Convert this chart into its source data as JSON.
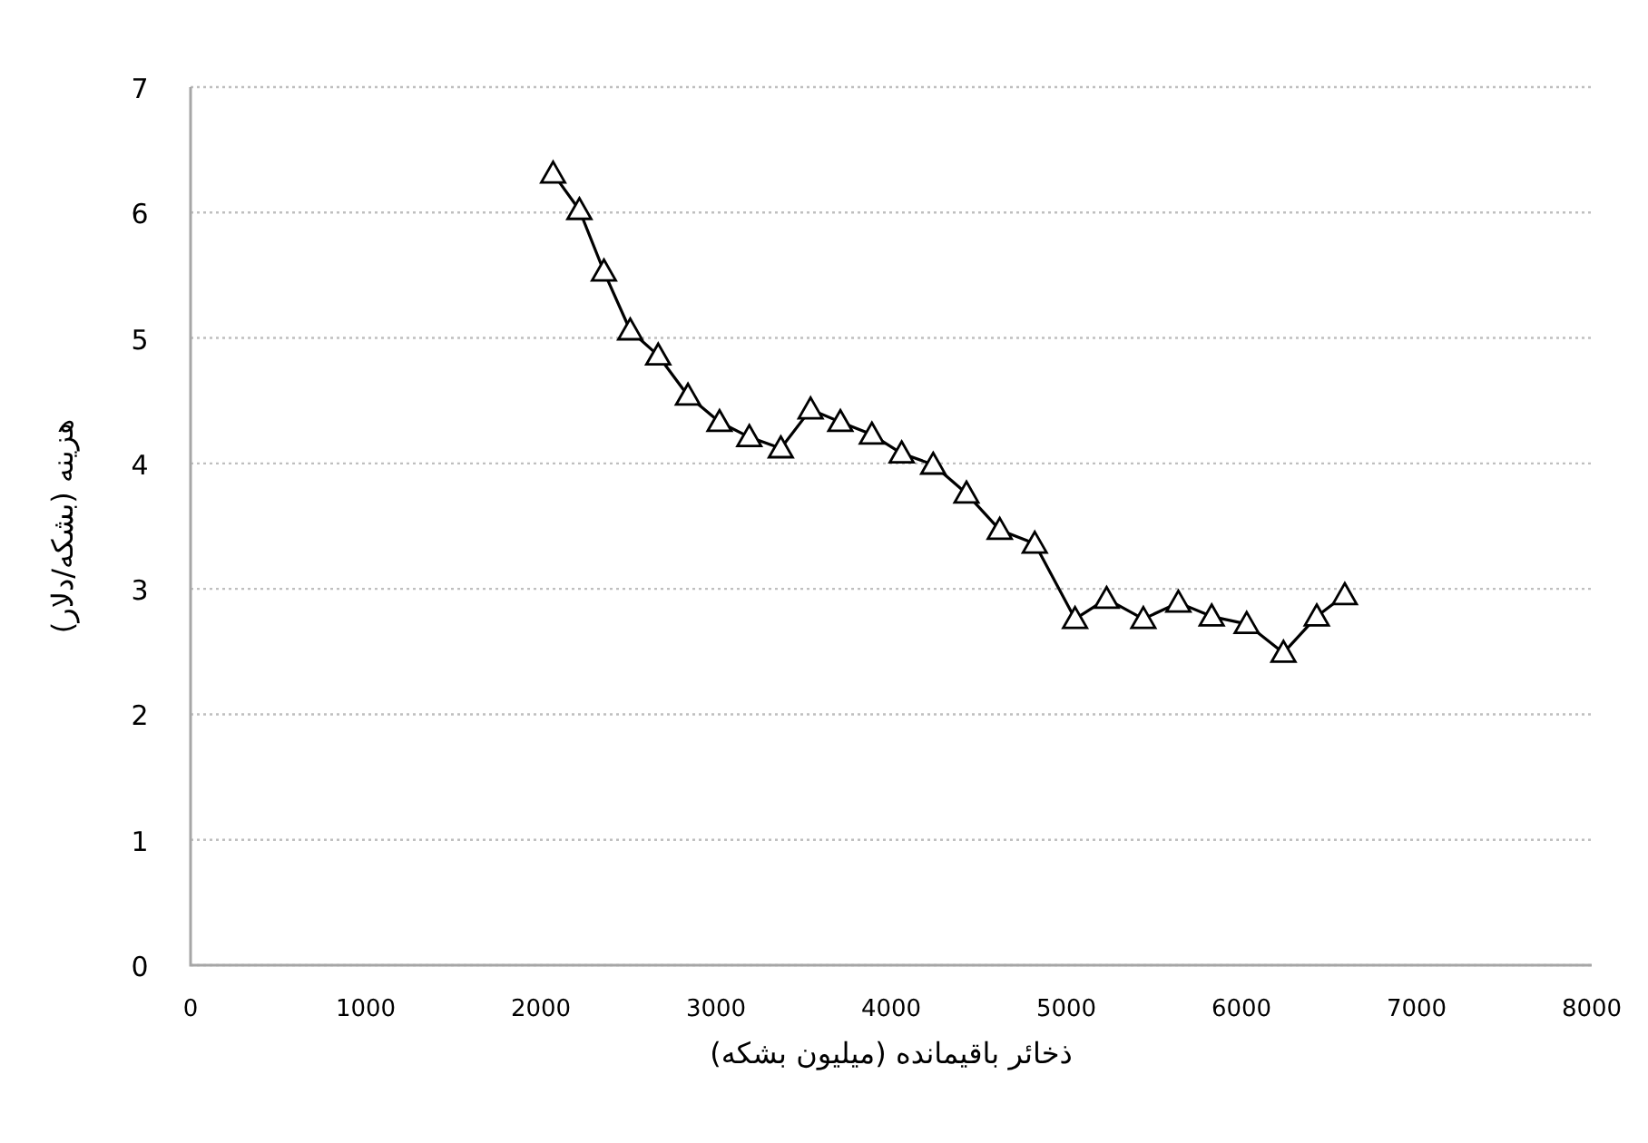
{
  "chart_data": {
    "type": "line",
    "xlabel": "ذخائر باقیمانده (میلیون بشکه)",
    "ylabel": "هزینه (بشکه/دلار)",
    "x": [
      2070,
      2220,
      2360,
      2510,
      2670,
      2840,
      3020,
      3190,
      3370,
      3540,
      3710,
      3890,
      4060,
      4240,
      4430,
      4620,
      4820,
      5050,
      5230,
      5440,
      5640,
      5830,
      6030,
      6240,
      6430,
      6590
    ],
    "values": [
      6.31,
      6.02,
      5.53,
      5.06,
      4.86,
      4.54,
      4.33,
      4.21,
      4.12,
      4.43,
      4.33,
      4.23,
      4.08,
      3.99,
      3.76,
      3.47,
      3.36,
      2.76,
      2.92,
      2.76,
      2.89,
      2.78,
      2.72,
      2.49,
      2.78,
      2.95
    ],
    "color": "#000000",
    "marker": "triangle",
    "line_style": "solid",
    "grid": "y",
    "xlim": [
      0,
      8000
    ],
    "xticks": [
      0,
      1000,
      2000,
      3000,
      4000,
      5000,
      6000,
      7000,
      8000
    ],
    "ylim": [
      0,
      7
    ],
    "yticks": [
      0,
      1,
      2,
      3,
      4,
      5,
      6,
      7
    ]
  }
}
